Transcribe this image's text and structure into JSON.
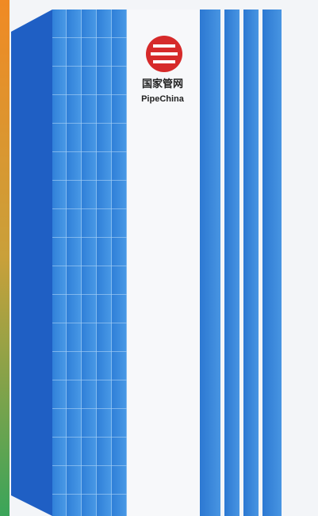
{
  "logo": {
    "name_cn": "国家管网",
    "name_en": "PipeChina"
  }
}
